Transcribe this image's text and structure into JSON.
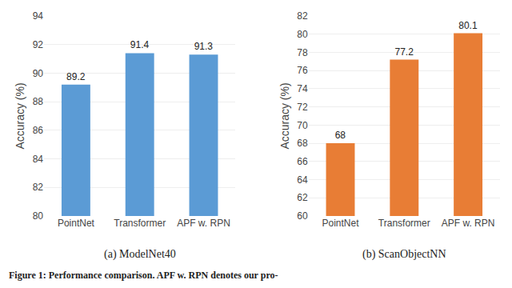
{
  "chart_data": [
    {
      "type": "bar",
      "subtitle": "(a) ModelNet40",
      "categories": [
        "PointNet",
        "Transformer",
        "APF w. RPN"
      ],
      "values": [
        89.2,
        91.4,
        91.3
      ],
      "color": "#5B9BD5",
      "ylim": [
        80,
        94
      ],
      "yticks": [
        80,
        82,
        84,
        86,
        88,
        90,
        92,
        94
      ],
      "ylabel": "Accuracy (%)",
      "grid": true,
      "data_labels": true
    },
    {
      "type": "bar",
      "subtitle": "(b) ScanObjectNN",
      "categories": [
        "PointNet",
        "Transformer",
        "APF w. RPN"
      ],
      "values": [
        68,
        77.2,
        80.1
      ],
      "color": "#E87D35",
      "ylim": [
        60,
        82
      ],
      "yticks": [
        60,
        62,
        64,
        66,
        68,
        70,
        72,
        74,
        76,
        78,
        80,
        82
      ],
      "ylabel": "Accuracy (%)",
      "grid": true,
      "data_labels": true
    }
  ],
  "caption": "Figure 1: Performance comparison. APF w. RPN denotes our pro-"
}
